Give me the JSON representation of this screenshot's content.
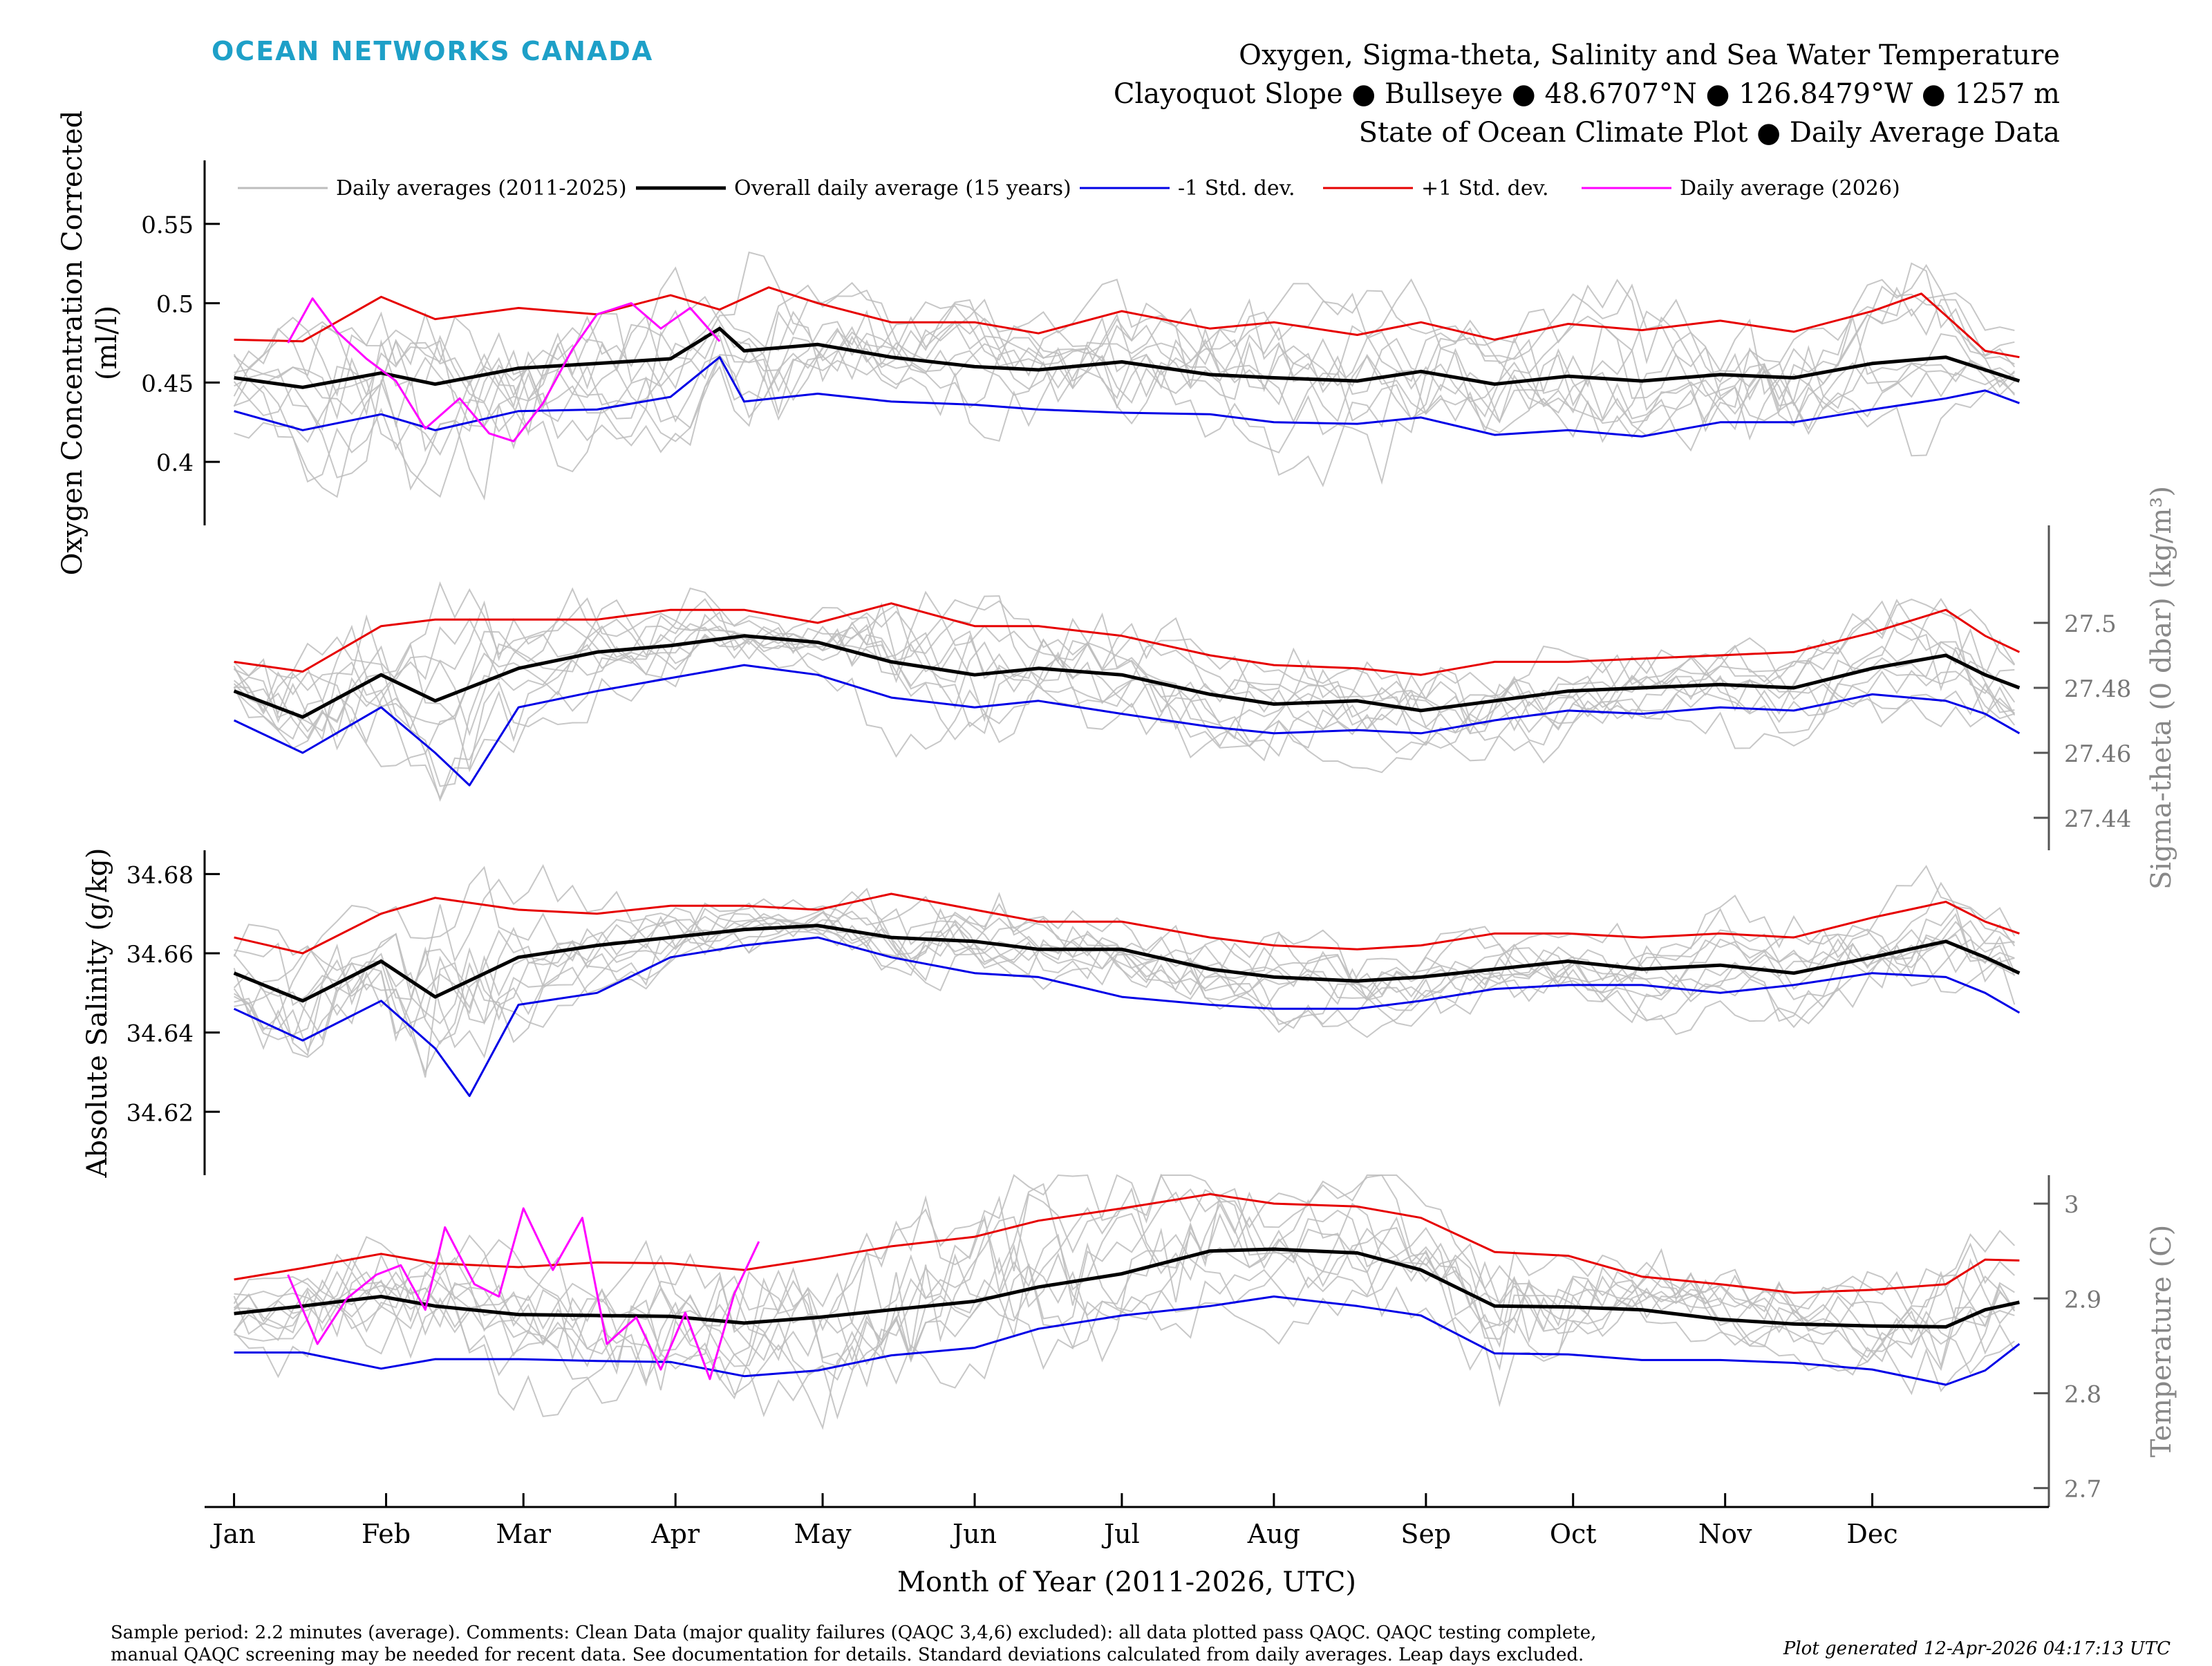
{
  "branding": {
    "logo_text": "OCEAN NETWORKS CANADA"
  },
  "titles": {
    "line1": "Oxygen, Sigma-theta, Salinity and Sea Water Temperature",
    "line2": "Clayoquot Slope ● Bullseye ● 48.6707°N ● 126.8479°W ● 1257 m",
    "line3": "State of Ocean Climate Plot ● Daily Average Data"
  },
  "colors": {
    "historical": "#bdbdbd",
    "mean": "#000000",
    "minus_std": "#0000e6",
    "plus_std": "#e60000",
    "current_year": "#ff00ff",
    "logo": "#1ea0c8"
  },
  "chart_data": [
    {
      "type": "line",
      "ylabel": "Oxygen Concentration Corrected (ml/l)",
      "ylabel_lines": [
        "Oxygen Concentration Corrected",
        "(ml/l)"
      ],
      "axis_side": "left",
      "ylim": [
        0.36,
        0.59
      ],
      "yticks": [
        0.4,
        0.45,
        0.5,
        0.55
      ],
      "ytick_labels": [
        "0.4",
        "0.45",
        "0.5",
        "0.55"
      ],
      "legend": {
        "placement": "top",
        "entries": [
          "Daily averages (2011-2025)",
          "Overall daily average (15 years)",
          "-1 Std. dev.",
          "+1 Std. dev.",
          "Daily average (2026)"
        ]
      },
      "series": [
        {
          "name": "Overall daily average (15 years)",
          "role": "mean",
          "x": [
            1,
            15,
            31,
            42,
            59,
            75,
            90,
            100,
            105,
            120,
            135,
            152,
            165,
            182,
            200,
            213,
            230,
            243,
            258,
            273,
            288,
            304,
            319,
            335,
            350,
            358,
            365
          ],
          "values": [
            0.453,
            0.447,
            0.456,
            0.449,
            0.459,
            0.462,
            0.465,
            0.484,
            0.47,
            0.474,
            0.466,
            0.46,
            0.458,
            0.463,
            0.455,
            0.453,
            0.451,
            0.457,
            0.449,
            0.454,
            0.451,
            0.455,
            0.453,
            0.462,
            0.466,
            0.458,
            0.451
          ]
        },
        {
          "name": "+1 Std. dev.",
          "role": "plus_std",
          "x": [
            1,
            15,
            31,
            42,
            59,
            75,
            90,
            100,
            110,
            120,
            135,
            152,
            165,
            182,
            200,
            213,
            230,
            243,
            258,
            273,
            288,
            304,
            319,
            335,
            345,
            358,
            365
          ],
          "values": [
            0.477,
            0.476,
            0.504,
            0.49,
            0.497,
            0.493,
            0.505,
            0.496,
            0.51,
            0.5,
            0.488,
            0.488,
            0.481,
            0.495,
            0.484,
            0.488,
            0.48,
            0.488,
            0.477,
            0.487,
            0.483,
            0.489,
            0.482,
            0.495,
            0.506,
            0.47,
            0.466
          ]
        },
        {
          "name": "-1 Std. dev.",
          "role": "minus_std",
          "x": [
            1,
            15,
            31,
            42,
            59,
            75,
            90,
            100,
            105,
            120,
            135,
            152,
            165,
            182,
            200,
            213,
            230,
            243,
            258,
            273,
            288,
            304,
            319,
            335,
            350,
            358,
            365
          ],
          "values": [
            0.432,
            0.42,
            0.43,
            0.42,
            0.432,
            0.433,
            0.441,
            0.466,
            0.438,
            0.443,
            0.438,
            0.436,
            0.433,
            0.431,
            0.43,
            0.425,
            0.424,
            0.428,
            0.417,
            0.42,
            0.416,
            0.425,
            0.425,
            0.433,
            0.44,
            0.445,
            0.437
          ]
        },
        {
          "name": "Daily average (2026)",
          "role": "current_year",
          "x": [
            12,
            17,
            22,
            28,
            34,
            40,
            47,
            53,
            58,
            64,
            70,
            75,
            82,
            88,
            94,
            100
          ],
          "values": [
            0.475,
            0.503,
            0.482,
            0.465,
            0.451,
            0.421,
            0.44,
            0.418,
            0.413,
            0.437,
            0.471,
            0.493,
            0.5,
            0.484,
            0.497,
            0.476
          ]
        }
      ]
    },
    {
      "type": "line",
      "ylabel": "Sigma-theta (0 dbar) (kg/m³)",
      "axis_side": "right",
      "ylim": [
        27.43,
        27.53
      ],
      "yticks": [
        27.44,
        27.46,
        27.48,
        27.5
      ],
      "ytick_labels": [
        "27.44",
        "27.46",
        "27.48",
        "27.5"
      ],
      "series": [
        {
          "name": "Overall daily average (15 years)",
          "role": "mean",
          "x": [
            1,
            15,
            31,
            42,
            59,
            75,
            90,
            105,
            120,
            135,
            152,
            165,
            182,
            200,
            213,
            230,
            243,
            258,
            273,
            288,
            304,
            319,
            335,
            350,
            358,
            365
          ],
          "values": [
            27.479,
            27.471,
            27.484,
            27.476,
            27.486,
            27.491,
            27.493,
            27.496,
            27.494,
            27.488,
            27.484,
            27.486,
            27.484,
            27.478,
            27.475,
            27.476,
            27.473,
            27.476,
            27.479,
            27.48,
            27.481,
            27.48,
            27.486,
            27.49,
            27.484,
            27.48
          ]
        },
        {
          "name": "+1 Std. dev.",
          "role": "plus_std",
          "x": [
            1,
            15,
            31,
            42,
            59,
            75,
            90,
            105,
            120,
            135,
            152,
            165,
            182,
            200,
            213,
            230,
            243,
            258,
            273,
            288,
            304,
            319,
            335,
            350,
            358,
            365
          ],
          "values": [
            27.488,
            27.485,
            27.499,
            27.501,
            27.501,
            27.501,
            27.504,
            27.504,
            27.5,
            27.506,
            27.499,
            27.499,
            27.496,
            27.49,
            27.487,
            27.486,
            27.484,
            27.488,
            27.488,
            27.489,
            27.49,
            27.491,
            27.497,
            27.504,
            27.496,
            27.491
          ]
        },
        {
          "name": "-1 Std. dev.",
          "role": "minus_std",
          "x": [
            1,
            15,
            31,
            42,
            49,
            59,
            75,
            90,
            105,
            120,
            135,
            152,
            165,
            182,
            200,
            213,
            230,
            243,
            258,
            273,
            288,
            304,
            319,
            335,
            350,
            358,
            365
          ],
          "values": [
            27.47,
            27.46,
            27.474,
            27.46,
            27.45,
            27.474,
            27.479,
            27.483,
            27.487,
            27.484,
            27.477,
            27.474,
            27.476,
            27.472,
            27.468,
            27.466,
            27.467,
            27.466,
            27.47,
            27.473,
            27.472,
            27.474,
            27.473,
            27.478,
            27.476,
            27.472,
            27.466
          ]
        }
      ]
    },
    {
      "type": "line",
      "ylabel": "Absolute Salinity (g/kg)",
      "axis_side": "left",
      "ylim": [
        34.604,
        34.686
      ],
      "yticks": [
        34.62,
        34.64,
        34.66,
        34.68
      ],
      "ytick_labels": [
        "34.62",
        "34.64",
        "34.66",
        "34.68"
      ],
      "series": [
        {
          "name": "Overall daily average (15 years)",
          "role": "mean",
          "x": [
            1,
            15,
            31,
            42,
            59,
            75,
            90,
            105,
            120,
            135,
            152,
            165,
            182,
            200,
            213,
            230,
            243,
            258,
            273,
            288,
            304,
            319,
            335,
            350,
            358,
            365
          ],
          "values": [
            34.655,
            34.648,
            34.658,
            34.649,
            34.659,
            34.662,
            34.664,
            34.666,
            34.667,
            34.664,
            34.663,
            34.661,
            34.661,
            34.656,
            34.654,
            34.653,
            34.654,
            34.656,
            34.658,
            34.656,
            34.657,
            34.655,
            34.659,
            34.663,
            34.659,
            34.655
          ]
        },
        {
          "name": "+1 Std. dev.",
          "role": "plus_std",
          "x": [
            1,
            15,
            31,
            42,
            59,
            75,
            90,
            105,
            120,
            135,
            152,
            165,
            182,
            200,
            213,
            230,
            243,
            258,
            273,
            288,
            304,
            319,
            335,
            350,
            358,
            365
          ],
          "values": [
            34.664,
            34.66,
            34.67,
            34.674,
            34.671,
            34.67,
            34.672,
            34.672,
            34.671,
            34.675,
            34.671,
            34.668,
            34.668,
            34.664,
            34.662,
            34.661,
            34.662,
            34.665,
            34.665,
            34.664,
            34.665,
            34.664,
            34.669,
            34.673,
            34.668,
            34.665
          ]
        },
        {
          "name": "-1 Std. dev.",
          "role": "minus_std",
          "x": [
            1,
            15,
            31,
            42,
            49,
            59,
            75,
            90,
            105,
            120,
            135,
            152,
            165,
            182,
            200,
            213,
            230,
            243,
            258,
            273,
            288,
            304,
            319,
            335,
            350,
            358,
            365
          ],
          "values": [
            34.646,
            34.638,
            34.648,
            34.636,
            34.624,
            34.647,
            34.65,
            34.659,
            34.662,
            34.664,
            34.659,
            34.655,
            34.654,
            34.649,
            34.647,
            34.646,
            34.646,
            34.648,
            34.651,
            34.652,
            34.652,
            34.65,
            34.652,
            34.655,
            34.654,
            34.65,
            34.645
          ]
        }
      ]
    },
    {
      "type": "line",
      "ylabel": "Temperature (C)",
      "axis_side": "right",
      "ylim": [
        2.68,
        3.03
      ],
      "yticks": [
        2.7,
        2.8,
        2.9,
        3.0
      ],
      "ytick_labels": [
        "2.7",
        "2.8",
        "2.9",
        "3"
      ],
      "series": [
        {
          "name": "Overall daily average (15 years)",
          "role": "mean",
          "x": [
            1,
            15,
            31,
            42,
            59,
            75,
            90,
            105,
            120,
            135,
            152,
            165,
            182,
            200,
            213,
            230,
            243,
            258,
            273,
            288,
            304,
            319,
            335,
            350,
            358,
            365
          ],
          "values": [
            2.884,
            2.892,
            2.902,
            2.892,
            2.883,
            2.882,
            2.881,
            2.874,
            2.88,
            2.888,
            2.897,
            2.912,
            2.926,
            2.95,
            2.952,
            2.948,
            2.93,
            2.892,
            2.891,
            2.888,
            2.878,
            2.873,
            2.871,
            2.87,
            2.888,
            2.896
          ]
        },
        {
          "name": "+1 Std. dev.",
          "role": "plus_std",
          "x": [
            1,
            15,
            31,
            42,
            59,
            75,
            90,
            105,
            120,
            135,
            152,
            165,
            182,
            200,
            213,
            230,
            243,
            258,
            273,
            288,
            304,
            319,
            335,
            350,
            358,
            365
          ],
          "values": [
            2.92,
            2.932,
            2.947,
            2.937,
            2.933,
            2.938,
            2.937,
            2.93,
            2.942,
            2.955,
            2.965,
            2.982,
            2.995,
            3.01,
            3.0,
            2.997,
            2.985,
            2.949,
            2.945,
            2.923,
            2.915,
            2.906,
            2.909,
            2.915,
            2.941,
            2.94
          ]
        },
        {
          "name": "-1 Std. dev.",
          "role": "minus_std",
          "x": [
            1,
            15,
            31,
            42,
            59,
            75,
            90,
            105,
            120,
            135,
            152,
            165,
            182,
            200,
            213,
            230,
            243,
            258,
            273,
            288,
            304,
            319,
            335,
            350,
            358,
            365
          ],
          "values": [
            2.843,
            2.843,
            2.826,
            2.836,
            2.836,
            2.834,
            2.833,
            2.818,
            2.824,
            2.84,
            2.848,
            2.868,
            2.882,
            2.892,
            2.902,
            2.892,
            2.882,
            2.842,
            2.841,
            2.835,
            2.835,
            2.832,
            2.825,
            2.809,
            2.824,
            2.852
          ]
        },
        {
          "name": "Daily average (2026)",
          "role": "current_year",
          "x": [
            12,
            18,
            24,
            30,
            35,
            40,
            44,
            50,
            55,
            60,
            66,
            72,
            77,
            83,
            88,
            93,
            98,
            103,
            108
          ],
          "values": [
            2.925,
            2.852,
            2.9,
            2.925,
            2.935,
            2.888,
            2.975,
            2.915,
            2.902,
            2.995,
            2.93,
            2.985,
            2.852,
            2.88,
            2.825,
            2.885,
            2.815,
            2.905,
            2.96
          ]
        }
      ]
    }
  ],
  "xaxis": {
    "label": "Month of Year (2011-2026, UTC)",
    "months": [
      "Jan",
      "Feb",
      "Mar",
      "Apr",
      "May",
      "Jun",
      "Jul",
      "Aug",
      "Sep",
      "Oct",
      "Nov",
      "Dec"
    ],
    "month_start_days": [
      1,
      32,
      60,
      91,
      121,
      152,
      182,
      213,
      244,
      274,
      305,
      335
    ],
    "xlim": [
      -5,
      371
    ]
  },
  "footer": {
    "line1": "Sample period: 2.2 minutes (average). Comments: Clean Data (major quality failures (QAQC 3,4,6) excluded): all data plotted pass QAQC. QAQC testing complete,",
    "line2": "manual QAQC screening may be needed for recent data. See documentation for details. Standard deviations calculated from daily averages. Leap days excluded.",
    "generated": "Plot generated 12-Apr-2026 04:17:13 UTC"
  }
}
